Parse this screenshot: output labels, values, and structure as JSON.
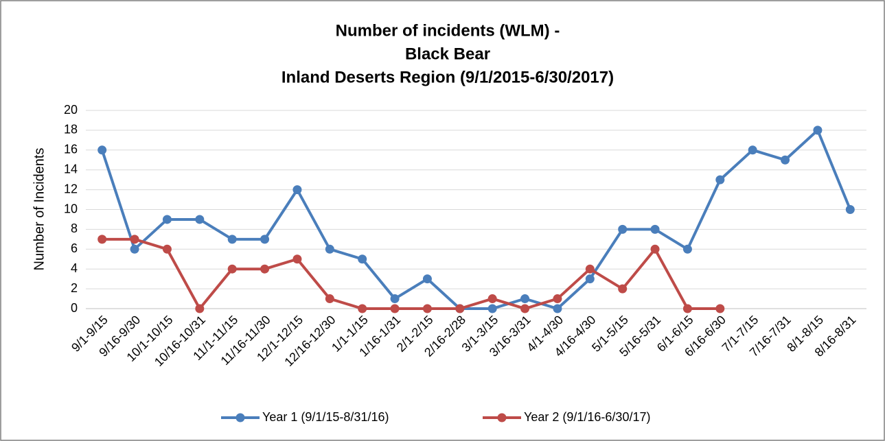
{
  "chart_data": {
    "type": "line",
    "title": [
      "Number of incidents (WLM) -",
      "Black Bear",
      "Inland Deserts Region (9/1/2015-6/30/2017)"
    ],
    "y_label": "Number of Incidents",
    "categories": [
      "9/1-9/15",
      "9/16-9/30",
      "10/1-10/15",
      "10/16-10/31",
      "11/1-11/15",
      "11/16-11/30",
      "12/1-12/15",
      "12/16-12/30",
      "1/1-1/15",
      "1/16-1/31",
      "2/1-2/15",
      "2/16-2/28",
      "3/1-3/15",
      "3/16-3/31",
      "4/1-4/30",
      "4/16-4/30",
      "5/1-5/15",
      "5/16-5/31",
      "6/1-6/15",
      "6/16-6/30",
      "7/1-7/15",
      "7/16-7/31",
      "8/1-8/15",
      "8/16-8/31"
    ],
    "series": [
      {
        "name": "Year 1 (9/1/15-8/31/16)",
        "color": "#4a7ebb",
        "values": [
          16,
          6,
          9,
          9,
          7,
          7,
          12,
          6,
          5,
          1,
          3,
          0,
          0,
          1,
          0,
          3,
          8,
          8,
          6,
          13,
          16,
          15,
          18,
          10
        ]
      },
      {
        "name": "Year 2 (9/1/16-6/30/17)",
        "color": "#be4b48",
        "values": [
          7,
          7,
          6,
          0,
          4,
          4,
          5,
          1,
          0,
          0,
          0,
          0,
          1,
          0,
          1,
          4,
          2,
          6,
          0,
          0,
          null,
          null,
          null,
          null
        ]
      }
    ],
    "ylim": [
      0,
      20
    ],
    "yticks": [
      0,
      2,
      4,
      6,
      8,
      10,
      12,
      14,
      16,
      18,
      20
    ],
    "grid": true,
    "legend": "bottom"
  }
}
